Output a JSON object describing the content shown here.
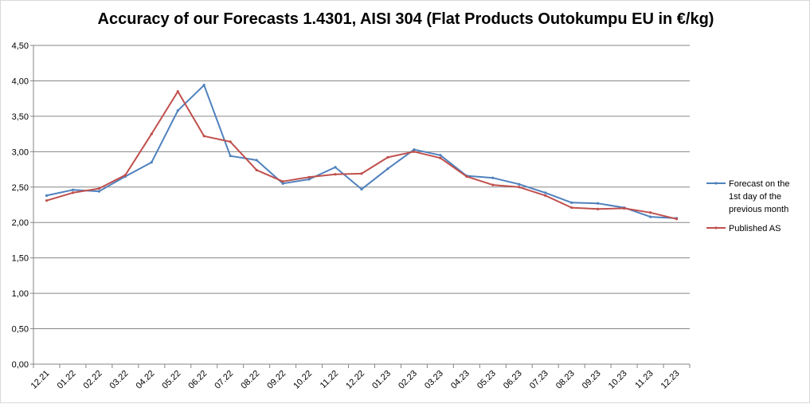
{
  "chart_data": {
    "type": "line",
    "title": "Accuracy of our Forecasts 1.4301, AISI 304 (Flat Products Outokumpu EU in €/kg)",
    "xlabel": "",
    "ylabel": "",
    "ylim": [
      0,
      4.5
    ],
    "y_ticks": [
      "0,00",
      "0,50",
      "1,00",
      "1,50",
      "2,00",
      "2,50",
      "3,00",
      "3,50",
      "4,00",
      "4,50"
    ],
    "y_tick_values": [
      0,
      0.5,
      1,
      1.5,
      2,
      2.5,
      3,
      3.5,
      4,
      4.5
    ],
    "grid": true,
    "legend_position": "right",
    "categories": [
      "12.21",
      "01.22",
      "02.22",
      "03.22",
      "04.22",
      "05.22",
      "06.22",
      "07.22",
      "08.22",
      "09.22",
      "10.22",
      "11.22",
      "12.22",
      "01.23",
      "02.23",
      "03.23",
      "04.23",
      "05.23",
      "06.23",
      "07.23",
      "08.23",
      "09.23",
      "10.23",
      "11.23",
      "12.23"
    ],
    "series": [
      {
        "name": "Forecast on the 1st day of the previous month",
        "legend_lines": [
          "Forecast on the",
          "1st day of the",
          " previous month"
        ],
        "color": "#4f81bd",
        "values": [
          2.38,
          2.46,
          2.44,
          2.65,
          2.85,
          3.58,
          3.94,
          2.94,
          2.88,
          2.55,
          2.61,
          2.78,
          2.47,
          2.76,
          3.03,
          2.95,
          2.66,
          2.63,
          2.54,
          2.42,
          2.28,
          2.27,
          2.21,
          2.08,
          2.06
        ]
      },
      {
        "name": "Published AS",
        "legend_lines": [
          "Published AS"
        ],
        "color": "#c0504d",
        "values": [
          2.31,
          2.42,
          2.48,
          2.67,
          3.25,
          3.85,
          3.22,
          3.14,
          2.74,
          2.58,
          2.64,
          2.68,
          2.69,
          2.92,
          3.0,
          2.91,
          2.65,
          2.53,
          2.5,
          2.38,
          2.21,
          2.19,
          2.2,
          2.14,
          2.05
        ]
      }
    ]
  }
}
